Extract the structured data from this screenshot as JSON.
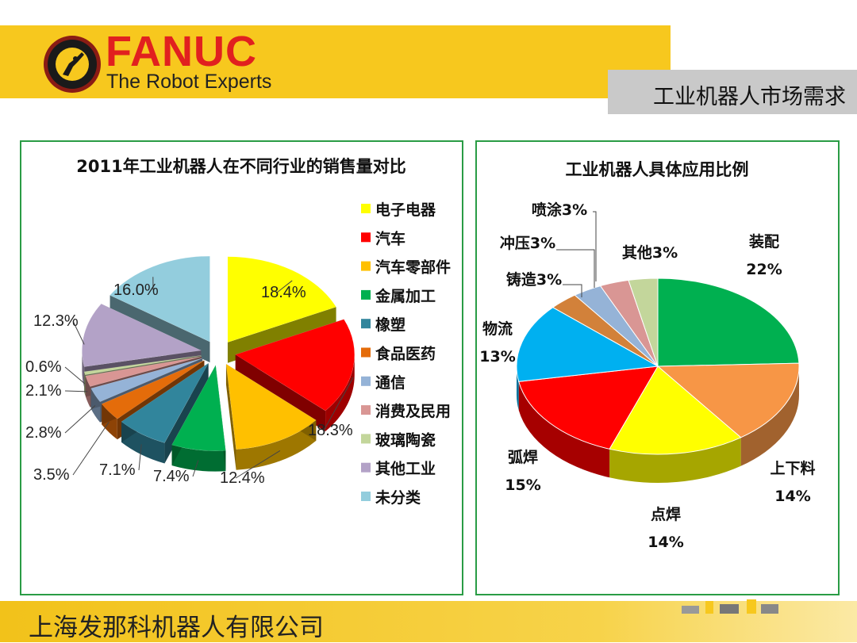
{
  "header": {
    "brand": "FANUC",
    "tagline": "The Robot Experts",
    "slide_title": "工业机器人市场需求",
    "logo_text": "THE ROBOT EXPERTS"
  },
  "footer": {
    "company": "上海发那科机器人有限公司"
  },
  "colors": {
    "band": "#f7c81e",
    "brand": "#e1201f",
    "panel_border": "#2a9c45"
  },
  "chart_data": [
    {
      "type": "pie",
      "title": "2011年工业机器人在不同行业的销售量对比",
      "legend_position": "right",
      "labels": [
        "电子电器",
        "汽车",
        "汽车零部件",
        "金属加工",
        "橡塑",
        "食品医药",
        "通信",
        "消费及民用",
        "玻璃陶瓷",
        "其他工业",
        "未分类"
      ],
      "values": [
        18.4,
        18.3,
        12.4,
        7.4,
        7.1,
        3.5,
        2.8,
        2.1,
        0.6,
        12.3,
        16.0
      ],
      "data_labels": [
        "18.4%",
        "18.3%",
        "12.4%",
        "7.4%",
        "7.1%",
        "3.5%",
        "2.8%",
        "2.1%",
        "0.6%",
        "12.3%",
        "16.0%"
      ],
      "colors": [
        "#ffff00",
        "#ff0000",
        "#ffc000",
        "#00b050",
        "#31859c",
        "#e46c0a",
        "#95b3d7",
        "#d99694",
        "#c3d69b",
        "#b3a2c7",
        "#93cddd"
      ]
    },
    {
      "type": "pie",
      "title": "工业机器人具体应用比例",
      "labels": [
        "装配",
        "上下料",
        "点焊",
        "弧焊",
        "物流",
        "铸造",
        "冲压",
        "喷涂",
        "其他"
      ],
      "values": [
        22,
        14,
        14,
        15,
        13,
        3,
        3,
        3,
        3
      ],
      "data_labels": [
        "装配 22%",
        "上下料 14%",
        "点焊 14%",
        "弧焊 15%",
        "物流 13%",
        "铸造3%",
        "冲压3%",
        "喷涂3%",
        "其他3%"
      ],
      "colors": [
        "#00b050",
        "#f79646",
        "#ffff00",
        "#ff0000",
        "#00b0f0",
        "#d2813a",
        "#95b3d7",
        "#d99694",
        "#c3d69b"
      ]
    }
  ]
}
